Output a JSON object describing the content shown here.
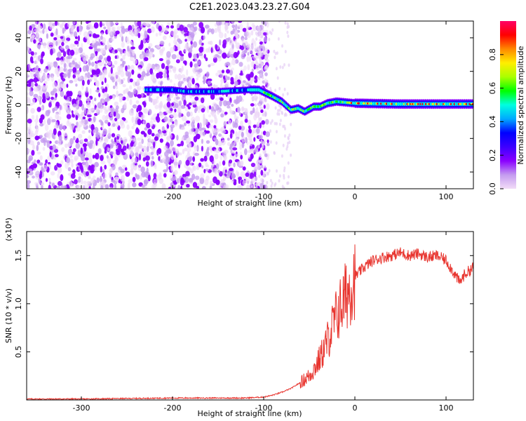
{
  "title": "C2E1.2023.043.23.27.G04",
  "chart_data": [
    {
      "type": "heatmap",
      "xlabel": "Height of straight line (km)",
      "ylabel": "Frequency (Hz)",
      "xlim": [
        -360,
        130
      ],
      "ylim": [
        -50,
        50
      ],
      "xticks": [
        -300,
        -200,
        -100,
        0,
        100
      ],
      "yticks": [
        -40,
        -20,
        0,
        20,
        40
      ],
      "colorbar": {
        "label": "Normalized spectral amplitude",
        "range": [
          0.0,
          1.0
        ],
        "ticks": [
          0.0,
          0.2,
          0.4,
          0.6,
          0.8
        ],
        "tick_labels": [
          "0.0",
          "0.2",
          "0.4",
          "0.6",
          "0.8"
        ],
        "colormap": [
          "#f2dcf7",
          "#c49bf0",
          "#8a00ff",
          "#3c00ff",
          "#0000ff",
          "#00aaff",
          "#00ffe0",
          "#00ff00",
          "#aaff00",
          "#ffee00",
          "#ff8800",
          "#ff0000",
          "#ff0066"
        ]
      },
      "ridge": [
        {
          "x": -230,
          "y": 9
        },
        {
          "x": -200,
          "y": 9
        },
        {
          "x": -185,
          "y": 8
        },
        {
          "x": -150,
          "y": 8
        },
        {
          "x": -115,
          "y": 9
        },
        {
          "x": -105,
          "y": 9
        },
        {
          "x": -90,
          "y": 5
        },
        {
          "x": -80,
          "y": 2
        },
        {
          "x": -70,
          "y": -3
        },
        {
          "x": -62,
          "y": -2
        },
        {
          "x": -55,
          "y": -4
        },
        {
          "x": -45,
          "y": -1
        },
        {
          "x": -38,
          "y": -1
        },
        {
          "x": -30,
          "y": 1
        },
        {
          "x": -20,
          "y": 2
        },
        {
          "x": 0,
          "y": 1
        },
        {
          "x": 50,
          "y": 0.5
        },
        {
          "x": 130,
          "y": 0.5
        }
      ]
    },
    {
      "type": "line",
      "xlabel": "Height of straight line (km)",
      "ylabel": "SNR (10 * v/v)",
      "y_multiplier": "(x10⁴)",
      "xlim": [
        -360,
        130
      ],
      "ylim": [
        0,
        1.75
      ],
      "xticks": [
        -300,
        -200,
        -100,
        0,
        100
      ],
      "yticks": [
        0.5,
        1.0,
        1.5
      ],
      "ytick_labels": [
        "0.5",
        "1.0",
        "1.5"
      ],
      "color": "#e8352f",
      "series": [
        {
          "x": [
            -360,
            -300,
            -200,
            -150,
            -120,
            -100,
            -90,
            -80,
            -70,
            -60,
            -50,
            -45,
            -40,
            -35,
            -30,
            -25,
            -20,
            -15,
            -10,
            -5,
            0,
            10,
            20,
            30,
            40,
            50,
            60,
            70,
            80,
            90,
            100,
            110,
            115,
            120,
            130
          ],
          "y": [
            0.01,
            0.01,
            0.02,
            0.02,
            0.02,
            0.03,
            0.05,
            0.08,
            0.12,
            0.18,
            0.25,
            0.32,
            0.4,
            0.5,
            0.62,
            0.75,
            0.88,
            0.98,
            1.08,
            1.18,
            1.28,
            1.38,
            1.45,
            1.48,
            1.5,
            1.53,
            1.5,
            1.52,
            1.48,
            1.5,
            1.45,
            1.3,
            1.22,
            1.3,
            1.38
          ]
        }
      ]
    }
  ]
}
